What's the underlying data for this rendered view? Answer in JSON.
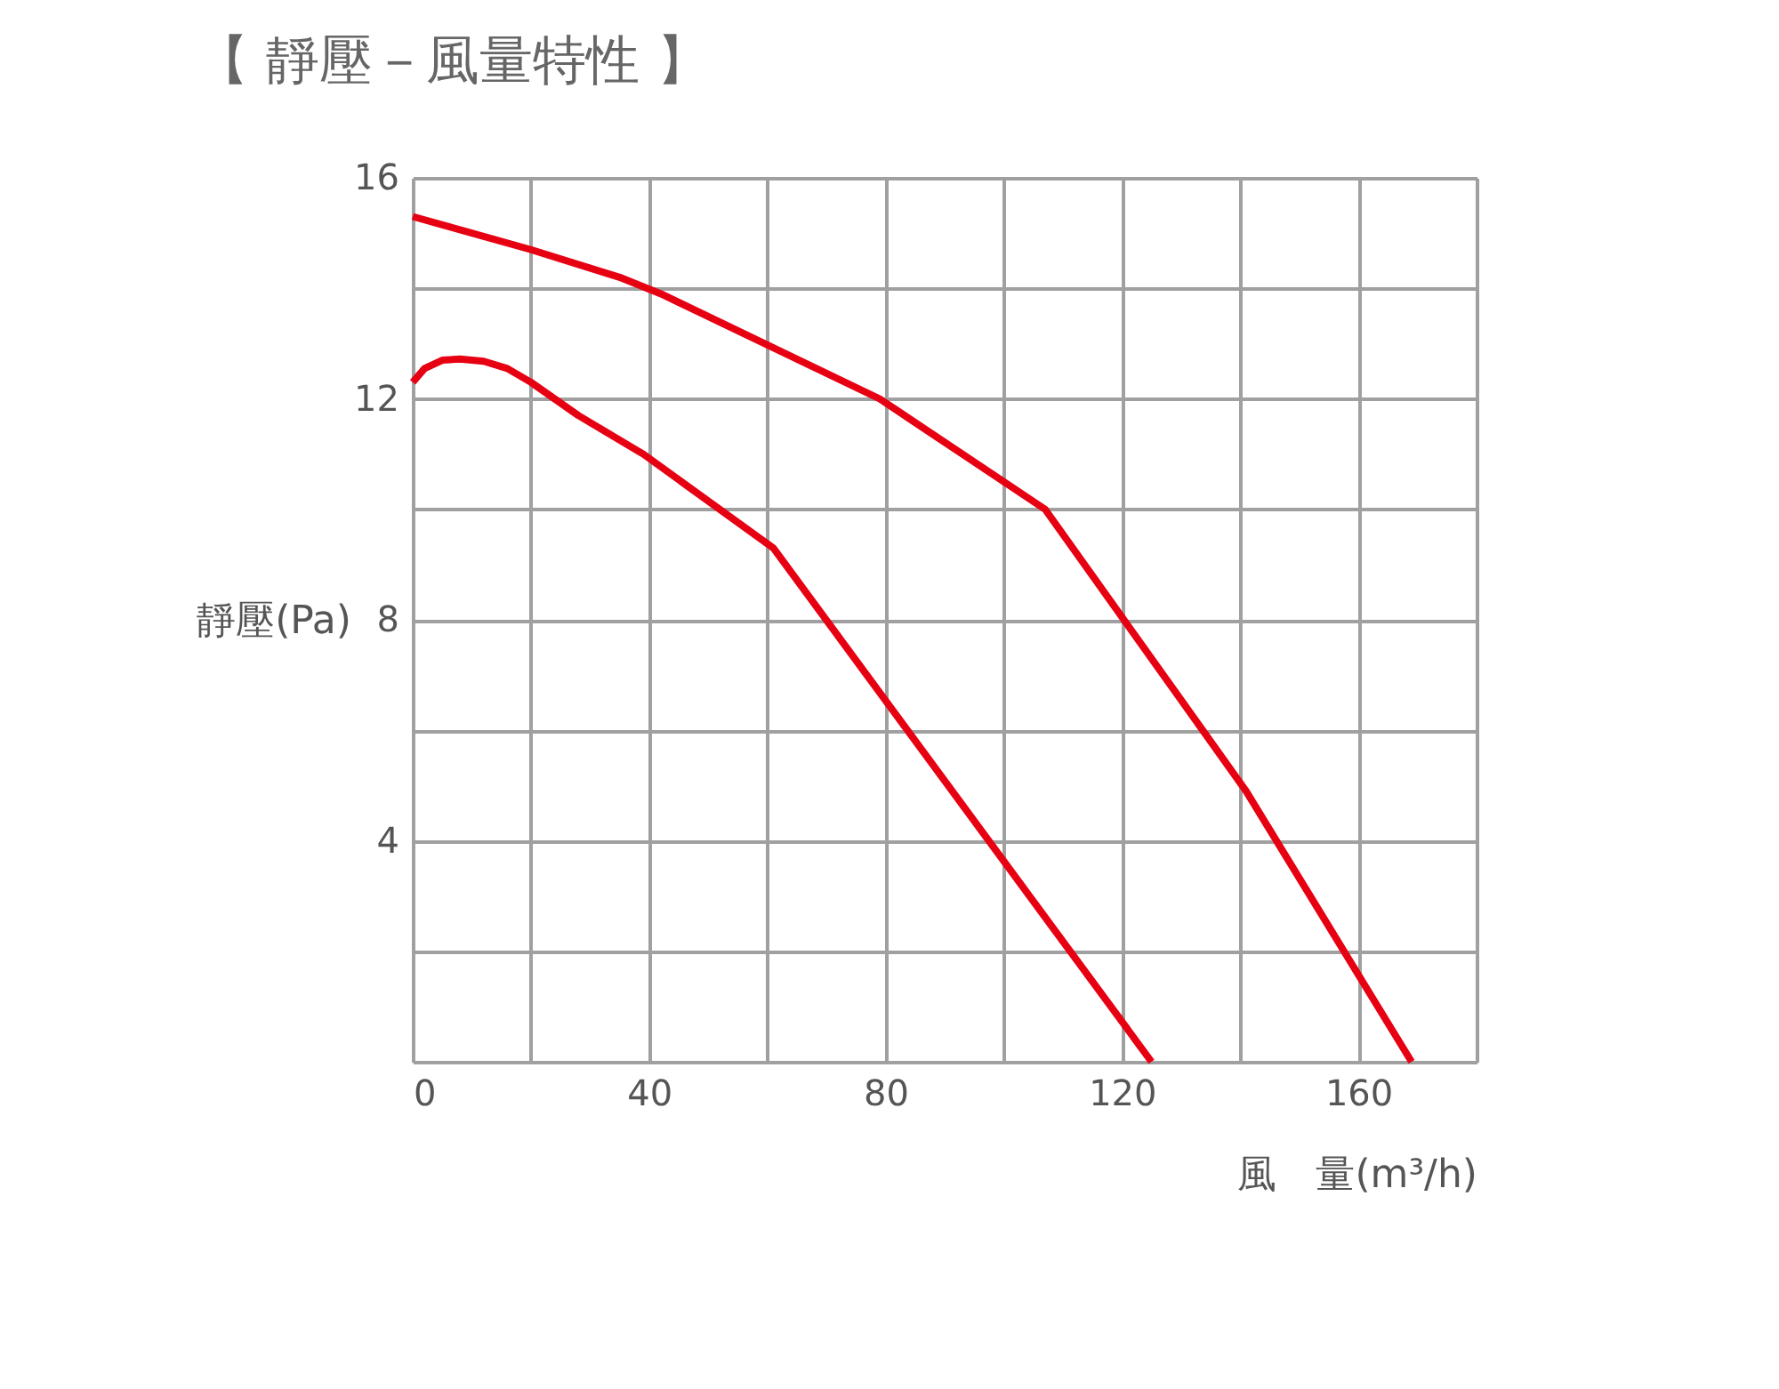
{
  "chart_data": {
    "type": "line",
    "title": "【 靜壓－風量特性 】",
    "xlabel": "風　量(m³/h)",
    "ylabel": "靜壓(Pa)",
    "xlim": [
      0,
      180
    ],
    "ylim": [
      0,
      16
    ],
    "xticks": [
      0,
      {
        "value": 20,
        "label": null
      },
      40,
      {
        "value": 60,
        "label": null
      },
      80,
      {
        "value": 100,
        "label": null
      },
      120,
      {
        "value": 140,
        "label": null
      },
      160,
      {
        "value": 180,
        "label": null
      }
    ],
    "yticks": [
      {
        "value": 0,
        "label": null
      },
      {
        "value": 2,
        "label": null
      },
      4,
      {
        "value": 6,
        "label": null
      },
      8,
      {
        "value": 10,
        "label": null
      },
      12,
      {
        "value": 14,
        "label": null
      },
      16
    ],
    "grid": true,
    "legend": false,
    "marker": "none",
    "line_style": "solid",
    "series": [
      {
        "color": "#e60012",
        "x": [
          0,
          20,
          35,
          42,
          79,
          107,
          141,
          169
        ],
        "values": [
          15.3,
          14.7,
          14.2,
          13.9,
          12.0,
          10.0,
          4.9,
          0
        ]
      },
      {
        "color": "#e60012",
        "x": [
          0,
          2,
          5,
          8,
          12,
          16,
          20,
          28,
          39,
          61,
          125
        ],
        "values": [
          12.3,
          12.55,
          12.7,
          12.72,
          12.68,
          12.55,
          12.3,
          11.7,
          11.0,
          9.3,
          0
        ]
      }
    ]
  }
}
